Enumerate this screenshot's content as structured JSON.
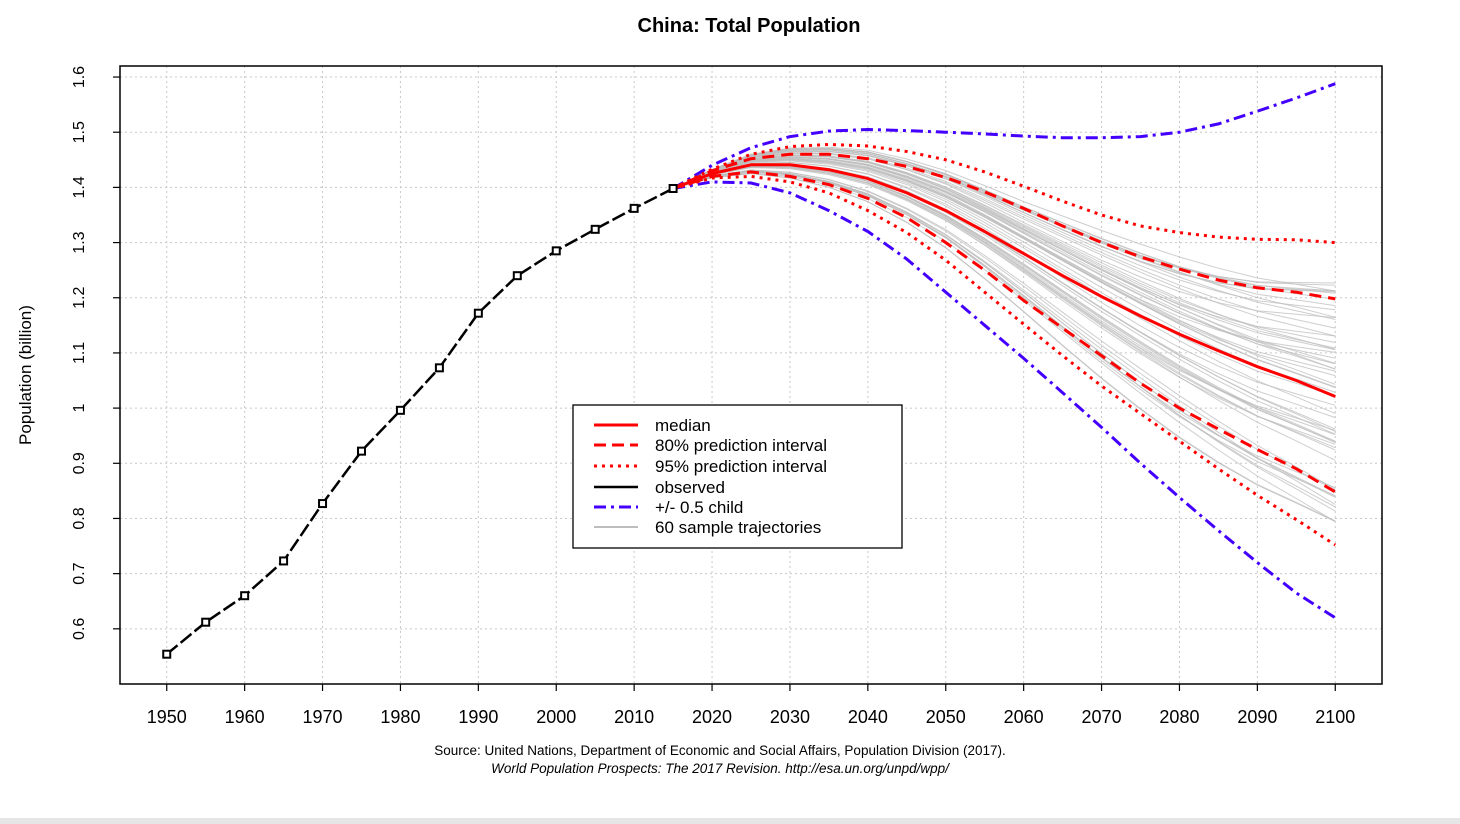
{
  "chart_data": {
    "type": "line",
    "title": "China: Total Population",
    "xlabel": "",
    "ylabel": "Population (billion)",
    "xlim": [
      1944,
      2106
    ],
    "ylim": [
      0.5,
      1.62
    ],
    "x_ticks": [
      1950,
      1960,
      1970,
      1980,
      1990,
      2000,
      2010,
      2020,
      2030,
      2040,
      2050,
      2060,
      2070,
      2080,
      2090,
      2100
    ],
    "x_tick_labels": [
      "1950",
      "1960",
      "1970",
      "1980",
      "1990",
      "2000",
      "2010",
      "2020",
      "2030",
      "2040",
      "2050",
      "2060",
      "2070",
      "2080",
      "2090",
      "2100"
    ],
    "y_ticks": [
      0.6,
      0.7,
      0.8,
      0.9,
      1.0,
      1.1,
      1.2,
      1.3,
      1.4,
      1.5,
      1.6
    ],
    "y_tick_labels": [
      "0.6",
      "0.7",
      "0.8",
      "0.9",
      "1",
      "1.1",
      "1.2",
      "1.3",
      "1.4",
      "1.5",
      "1.6"
    ],
    "grid": true,
    "legend_position": "center",
    "source_line1": "Source: United Nations, Department of Economic and Social Affairs, Population Division (2017).",
    "source_line2": "World Population Prospects: The 2017 Revision. http://esa.un.org/unpd/wpp/",
    "series": [
      {
        "name": "observed",
        "legend_label": "observed",
        "style": "solid-dash-points",
        "color": "#000000",
        "x": [
          1950,
          1955,
          1960,
          1965,
          1970,
          1975,
          1980,
          1985,
          1990,
          1995,
          2000,
          2005,
          2010,
          2015
        ],
        "y": [
          0.554,
          0.612,
          0.66,
          0.723,
          0.827,
          0.922,
          0.996,
          1.073,
          1.172,
          1.24,
          1.285,
          1.324,
          1.362,
          1.398
        ]
      },
      {
        "name": "median",
        "legend_label": "median",
        "style": "solid",
        "color": "#ff0000",
        "x": [
          2015,
          2020,
          2025,
          2030,
          2035,
          2040,
          2045,
          2050,
          2055,
          2060,
          2065,
          2070,
          2075,
          2080,
          2085,
          2090,
          2095,
          2100
        ],
        "y": [
          1.398,
          1.425,
          1.441,
          1.441,
          1.432,
          1.416,
          1.39,
          1.358,
          1.32,
          1.28,
          1.24,
          1.202,
          1.167,
          1.134,
          1.104,
          1.075,
          1.05,
          1.021
        ]
      },
      {
        "name": "80% upper",
        "legend_label": "80% prediction interval",
        "style": "dashed",
        "color": "#ff0000",
        "x": [
          2015,
          2020,
          2025,
          2030,
          2035,
          2040,
          2045,
          2050,
          2055,
          2060,
          2065,
          2070,
          2075,
          2080,
          2085,
          2090,
          2095,
          2100
        ],
        "y": [
          1.398,
          1.43,
          1.452,
          1.46,
          1.46,
          1.452,
          1.438,
          1.418,
          1.392,
          1.362,
          1.33,
          1.3,
          1.274,
          1.252,
          1.232,
          1.218,
          1.21,
          1.198
        ]
      },
      {
        "name": "80% lower",
        "legend_label": "",
        "style": "dashed",
        "color": "#ff0000",
        "x": [
          2015,
          2020,
          2025,
          2030,
          2035,
          2040,
          2045,
          2050,
          2055,
          2060,
          2065,
          2070,
          2075,
          2080,
          2085,
          2090,
          2095,
          2100
        ],
        "y": [
          1.398,
          1.42,
          1.428,
          1.42,
          1.405,
          1.38,
          1.345,
          1.3,
          1.25,
          1.195,
          1.145,
          1.095,
          1.045,
          1.0,
          0.962,
          0.925,
          0.89,
          0.848
        ]
      },
      {
        "name": "95% upper",
        "legend_label": "95% prediction interval",
        "style": "dotted",
        "color": "#ff0000",
        "x": [
          2015,
          2020,
          2025,
          2030,
          2035,
          2040,
          2045,
          2050,
          2055,
          2060,
          2065,
          2070,
          2075,
          2080,
          2085,
          2090,
          2095,
          2100
        ],
        "y": [
          1.398,
          1.433,
          1.46,
          1.474,
          1.478,
          1.475,
          1.465,
          1.45,
          1.428,
          1.402,
          1.375,
          1.35,
          1.33,
          1.318,
          1.31,
          1.306,
          1.305,
          1.3
        ]
      },
      {
        "name": "95% lower",
        "legend_label": "",
        "style": "dotted",
        "color": "#ff0000",
        "x": [
          2015,
          2020,
          2025,
          2030,
          2035,
          2040,
          2045,
          2050,
          2055,
          2060,
          2065,
          2070,
          2075,
          2080,
          2085,
          2090,
          2095,
          2100
        ],
        "y": [
          1.398,
          1.417,
          1.42,
          1.41,
          1.39,
          1.358,
          1.318,
          1.268,
          1.21,
          1.152,
          1.095,
          1.04,
          0.99,
          0.94,
          0.89,
          0.842,
          0.798,
          0.752
        ]
      },
      {
        "name": "+0.5 child",
        "legend_label": "+/- 0.5 child",
        "style": "dashdot",
        "color": "#4400ff",
        "x": [
          2015,
          2020,
          2025,
          2030,
          2035,
          2040,
          2045,
          2050,
          2055,
          2060,
          2065,
          2070,
          2075,
          2080,
          2085,
          2090,
          2095,
          2100
        ],
        "y": [
          1.398,
          1.44,
          1.472,
          1.492,
          1.502,
          1.505,
          1.503,
          1.5,
          1.497,
          1.493,
          1.49,
          1.49,
          1.492,
          1.5,
          1.515,
          1.538,
          1.562,
          1.588
        ]
      },
      {
        "name": "-0.5 child",
        "legend_label": "",
        "style": "dashdot",
        "color": "#4400ff",
        "x": [
          2015,
          2020,
          2025,
          2030,
          2035,
          2040,
          2045,
          2050,
          2055,
          2060,
          2065,
          2070,
          2075,
          2080,
          2085,
          2090,
          2095,
          2100
        ],
        "y": [
          1.398,
          1.41,
          1.408,
          1.39,
          1.358,
          1.32,
          1.27,
          1.21,
          1.15,
          1.09,
          1.028,
          0.965,
          0.9,
          0.838,
          0.778,
          0.72,
          0.665,
          0.62
        ]
      }
    ],
    "sample_trajectories": {
      "legend_label": "60 sample trajectories",
      "count": 60,
      "color": "#bdbdbd",
      "x": [
        2015,
        2020,
        2025,
        2030,
        2035,
        2040,
        2045,
        2050,
        2055,
        2060,
        2065,
        2070,
        2075,
        2080,
        2085,
        2090,
        2095,
        2100
      ],
      "median_y": [
        1.398,
        1.425,
        1.441,
        1.441,
        1.432,
        1.416,
        1.39,
        1.358,
        1.32,
        1.28,
        1.24,
        1.202,
        1.167,
        1.134,
        1.104,
        1.075,
        1.05,
        1.021
      ],
      "spread_hi": [
        0,
        0.008,
        0.02,
        0.03,
        0.04,
        0.05,
        0.06,
        0.072,
        0.085,
        0.1,
        0.12,
        0.14,
        0.16,
        0.18,
        0.2,
        0.22,
        0.24,
        0.26
      ],
      "spread_lo": [
        0,
        0.008,
        0.018,
        0.028,
        0.038,
        0.05,
        0.062,
        0.075,
        0.09,
        0.105,
        0.12,
        0.135,
        0.15,
        0.165,
        0.18,
        0.195,
        0.21,
        0.225
      ]
    }
  }
}
